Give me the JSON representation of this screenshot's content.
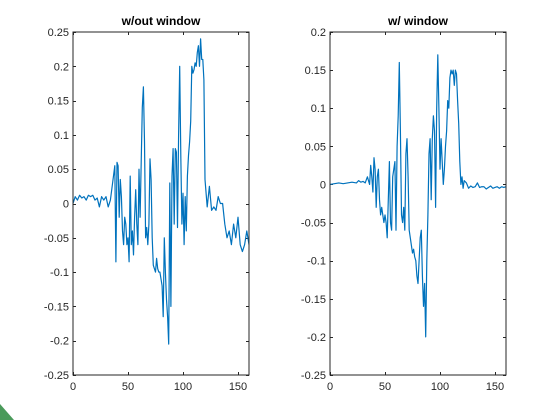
{
  "chart_data": [
    {
      "type": "line",
      "title": "w/out window",
      "xlim": [
        0,
        160
      ],
      "ylim": [
        -0.25,
        0.25
      ],
      "xticks": [
        0,
        50,
        100,
        150
      ],
      "xtick_labels": [
        "0",
        "50",
        "100",
        "150"
      ],
      "yticks": [
        -0.25,
        -0.2,
        -0.15,
        -0.1,
        -0.05,
        0,
        0.05,
        0.1,
        0.15,
        0.2,
        0.25
      ],
      "ytick_labels": [
        "-0.25",
        "-0.2",
        "-0.15",
        "-0.1",
        "-0.05",
        "0",
        "0.05",
        "0.1",
        "0.15",
        "0.2",
        "0.25"
      ],
      "grid": false,
      "series": [
        {
          "color": "#0072BD",
          "x": [
            0,
            2,
            4,
            6,
            8,
            10,
            12,
            14,
            16,
            18,
            20,
            22,
            24,
            26,
            28,
            30,
            32,
            34,
            36,
            38,
            39,
            40,
            41,
            42,
            43,
            44,
            45,
            46,
            47,
            48,
            49,
            50,
            51,
            52,
            53,
            54,
            55,
            56,
            57,
            58,
            59,
            60,
            61,
            62,
            63,
            64,
            65,
            66,
            67,
            68,
            69,
            70,
            71,
            72,
            73,
            74,
            75,
            76,
            77,
            78,
            79,
            80,
            81,
            82,
            83,
            84,
            85,
            86,
            87,
            88,
            89,
            90,
            91,
            92,
            93,
            94,
            95,
            96,
            97,
            98,
            99,
            100,
            101,
            102,
            103,
            104,
            105,
            106,
            107,
            108,
            109,
            110,
            111,
            112,
            113,
            114,
            115,
            116,
            117,
            118,
            119,
            120,
            122,
            124,
            126,
            128,
            130,
            132,
            134,
            136,
            138,
            140,
            142,
            144,
            146,
            148,
            150,
            152,
            154,
            156,
            158,
            160
          ],
          "y": [
            0.0,
            0.01,
            0.005,
            0.012,
            0.008,
            0.01,
            0.005,
            0.012,
            0.01,
            0.012,
            0.005,
            0.008,
            -0.005,
            0.01,
            0.005,
            0.01,
            -0.005,
            0.005,
            0.03,
            0.055,
            -0.085,
            0.06,
            0.055,
            -0.02,
            0.035,
            0.01,
            -0.04,
            -0.06,
            -0.02,
            -0.03,
            -0.06,
            -0.05,
            -0.085,
            0.04,
            -0.06,
            -0.04,
            -0.075,
            -0.02,
            0.02,
            -0.03,
            -0.06,
            0.05,
            -0.02,
            0.06,
            0.14,
            0.17,
            0.09,
            -0.05,
            -0.035,
            -0.06,
            -0.03,
            0.065,
            0.035,
            -0.05,
            -0.09,
            -0.095,
            -0.1,
            -0.08,
            -0.095,
            -0.1,
            -0.1,
            -0.11,
            -0.12,
            -0.165,
            -0.05,
            -0.1,
            -0.14,
            -0.165,
            -0.205,
            0.03,
            -0.15,
            0.04,
            0.08,
            -0.03,
            0.08,
            0.075,
            -0.035,
            0.1,
            0.2,
            0.07,
            -0.03,
            0.015,
            -0.06,
            0.01,
            -0.04,
            0.04,
            0.07,
            0.09,
            0.12,
            0.2,
            0.19,
            0.195,
            0.205,
            0.2,
            0.22,
            0.23,
            0.2,
            0.24,
            0.21,
            0.21,
            0.18,
            0.035,
            -0.005,
            0.025,
            -0.01,
            -0.005,
            -0.01,
            0.01,
            0.0,
            0.0,
            -0.03,
            -0.05,
            -0.04,
            -0.06,
            -0.03,
            -0.05,
            -0.02,
            -0.06,
            -0.07,
            -0.06,
            -0.04,
            -0.06
          ]
        }
      ]
    },
    {
      "type": "line",
      "title": "w/ window",
      "xlim": [
        0,
        160
      ],
      "ylim": [
        -0.25,
        0.2
      ],
      "xticks": [
        0,
        50,
        100,
        150
      ],
      "xtick_labels": [
        "0",
        "50",
        "100",
        "150"
      ],
      "yticks": [
        -0.25,
        -0.2,
        -0.15,
        -0.1,
        -0.05,
        0,
        0.05,
        0.1,
        0.15,
        0.2
      ],
      "ytick_labels": [
        "-0.25",
        "-0.2",
        "-0.15",
        "-0.1",
        "-0.05",
        "0",
        "0.05",
        "0.1",
        "0.15",
        "0.2"
      ],
      "grid": false,
      "series": [
        {
          "color": "#0072BD",
          "x": [
            0,
            4,
            8,
            12,
            16,
            20,
            24,
            26,
            28,
            30,
            32,
            34,
            36,
            37,
            38,
            39,
            40,
            41,
            42,
            43,
            44,
            45,
            46,
            47,
            48,
            49,
            50,
            51,
            52,
            53,
            54,
            55,
            56,
            57,
            58,
            59,
            60,
            61,
            62,
            63,
            64,
            65,
            66,
            67,
            68,
            69,
            70,
            71,
            72,
            73,
            74,
            75,
            76,
            77,
            78,
            79,
            80,
            81,
            82,
            83,
            84,
            85,
            86,
            87,
            88,
            89,
            90,
            91,
            92,
            93,
            94,
            95,
            96,
            97,
            98,
            99,
            100,
            101,
            102,
            103,
            104,
            105,
            106,
            107,
            108,
            109,
            110,
            111,
            112,
            113,
            114,
            115,
            116,
            117,
            118,
            119,
            120,
            121,
            122,
            124,
            126,
            128,
            130,
            132,
            134,
            136,
            138,
            140,
            142,
            144,
            146,
            148,
            150,
            152,
            154,
            156,
            158,
            160
          ],
          "y": [
            0.0,
            0.001,
            0.002,
            0.001,
            0.002,
            0.003,
            0.002,
            0.005,
            0.003,
            0.004,
            0.002,
            0.01,
            0.0,
            0.025,
            0.01,
            -0.01,
            0.035,
            0.02,
            -0.03,
            0.01,
            0.02,
            -0.02,
            -0.04,
            -0.03,
            -0.04,
            -0.05,
            -0.04,
            -0.05,
            -0.07,
            -0.02,
            0.03,
            -0.05,
            -0.06,
            0.01,
            0.02,
            0.03,
            -0.06,
            0.05,
            0.09,
            0.16,
            0.07,
            -0.04,
            -0.05,
            -0.03,
            -0.06,
            0.04,
            0.06,
            0.01,
            -0.06,
            -0.07,
            -0.08,
            -0.09,
            -0.085,
            -0.095,
            -0.1,
            -0.12,
            -0.13,
            -0.1,
            -0.07,
            -0.06,
            -0.12,
            -0.16,
            -0.13,
            -0.2,
            -0.1,
            -0.04,
            0.04,
            0.06,
            -0.02,
            0.06,
            0.09,
            0.07,
            -0.03,
            0.1,
            0.17,
            0.1,
            0.02,
            0.06,
            0.03,
            0.0,
            0.02,
            0.05,
            0.07,
            0.11,
            0.1,
            0.14,
            0.15,
            0.145,
            0.15,
            0.13,
            0.15,
            0.145,
            0.11,
            0.08,
            0.03,
            0.0,
            0.01,
            -0.005,
            0.005,
            0.002,
            -0.005,
            -0.002,
            -0.004,
            -0.003,
            0.002,
            -0.004,
            -0.003,
            -0.003,
            -0.006,
            -0.004,
            -0.002,
            -0.005,
            -0.004,
            -0.003,
            -0.005,
            -0.003,
            -0.004,
            -0.003
          ]
        }
      ]
    }
  ]
}
